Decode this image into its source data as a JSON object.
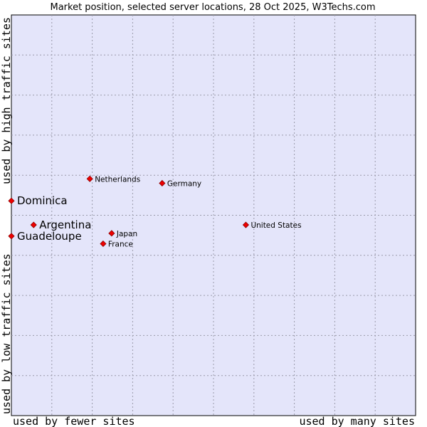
{
  "chart_data": {
    "type": "scatter",
    "title": "Market position, selected server locations, 28 Oct 2025, W3Techs.com",
    "xlabel_low": "used by fewer sites",
    "xlabel_high": "used by many sites",
    "ylabel_low": "used by low traffic sites",
    "ylabel_high": "used by high traffic sites",
    "xlim": [
      0,
      100
    ],
    "ylim": [
      0,
      100
    ],
    "grid": true,
    "points": [
      {
        "name": "Netherlands",
        "x": 19.4,
        "y": 59.1,
        "highlight": false
      },
      {
        "name": "Germany",
        "x": 37.3,
        "y": 58.0,
        "highlight": false
      },
      {
        "name": "Dominica",
        "x": 0.0,
        "y": 53.6,
        "highlight": true
      },
      {
        "name": "Argentina",
        "x": 5.5,
        "y": 47.6,
        "highlight": true
      },
      {
        "name": "United States",
        "x": 58.0,
        "y": 47.6,
        "highlight": false
      },
      {
        "name": "Japan",
        "x": 24.8,
        "y": 45.5,
        "highlight": false
      },
      {
        "name": "Guadeloupe",
        "x": 0.0,
        "y": 44.8,
        "highlight": true
      },
      {
        "name": "France",
        "x": 22.7,
        "y": 42.9,
        "highlight": false
      }
    ]
  }
}
